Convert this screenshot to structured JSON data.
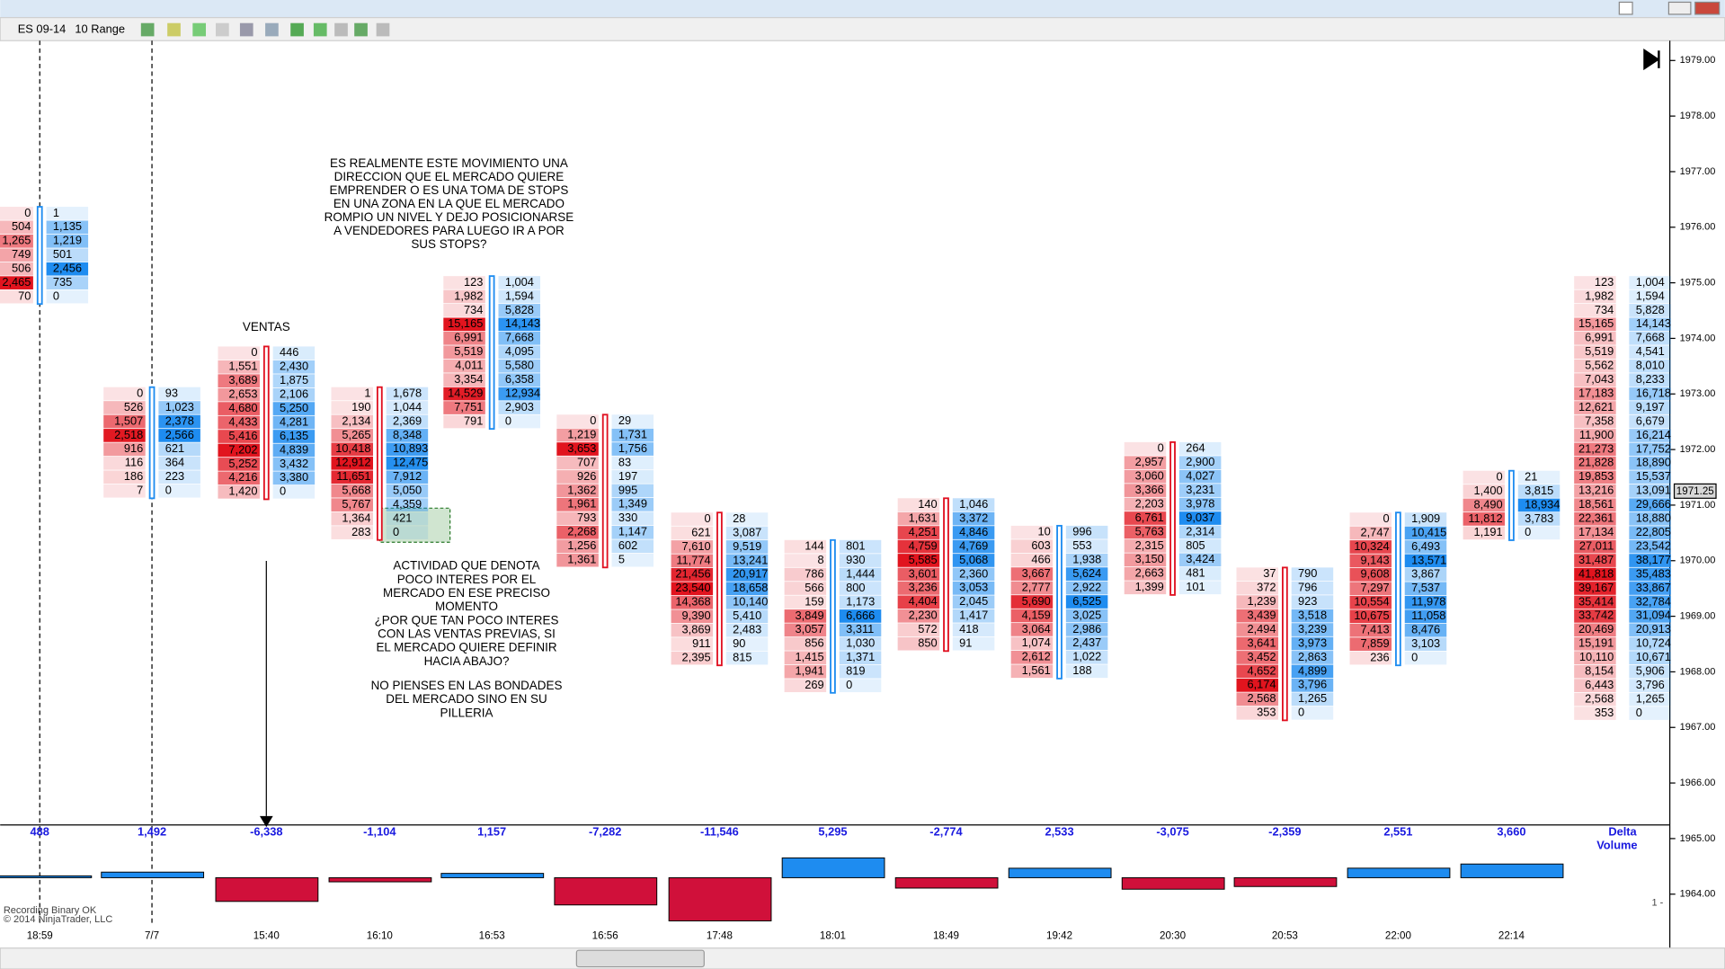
{
  "toolbar": {
    "instrument": "ES 09-14",
    "period": "10 Range"
  },
  "price_axis": {
    "labels": [
      "1979.00",
      "1978.00",
      "1977.00",
      "1976.00",
      "1975.00",
      "1974.00",
      "1973.00",
      "1972.00",
      "1971.00",
      "1970.00",
      "1969.00",
      "1968.00",
      "1967.00",
      "1966.00",
      "1965.00",
      "1964.00"
    ],
    "current_price": "1971.25"
  },
  "clusters": [
    {
      "time": "18:59",
      "rows": [
        [
          "0",
          "1"
        ],
        [
          "504",
          "1,135"
        ],
        [
          "1,265",
          "1,219"
        ],
        [
          "749",
          "501"
        ],
        [
          "506",
          "2,456"
        ],
        [
          "2,465",
          "735"
        ],
        [
          "70",
          "0"
        ]
      ]
    },
    {
      "time": "7/7",
      "rows": [
        [
          "0",
          "93"
        ],
        [
          "526",
          "1,023"
        ],
        [
          "1,507",
          "2,378"
        ],
        [
          "2,518",
          "2,566"
        ],
        [
          "916",
          "621"
        ],
        [
          "116",
          "364"
        ],
        [
          "186",
          "223"
        ],
        [
          "7",
          "0"
        ]
      ]
    },
    {
      "time": "15:40",
      "rows": [
        [
          "0",
          "446"
        ],
        [
          "1,551",
          "2,430"
        ],
        [
          "3,689",
          "1,875"
        ],
        [
          "2,653",
          "2,106"
        ],
        [
          "4,680",
          "5,250"
        ],
        [
          "4,433",
          "4,281"
        ],
        [
          "5,416",
          "6,135"
        ],
        [
          "7,202",
          "4,839"
        ],
        [
          "5,252",
          "3,432"
        ],
        [
          "4,216",
          "3,380"
        ],
        [
          "1,420",
          "0"
        ]
      ]
    },
    {
      "time": "16:10",
      "rows": [
        [
          "1",
          "1,678"
        ],
        [
          "190",
          "1,044"
        ],
        [
          "2,134",
          "2,369"
        ],
        [
          "5,265",
          "8,348"
        ],
        [
          "10,418",
          "10,893"
        ],
        [
          "12,912",
          "12,475"
        ],
        [
          "11,651",
          "7,912"
        ],
        [
          "5,668",
          "5,050"
        ],
        [
          "5,767",
          "4,359"
        ],
        [
          "1,364",
          "421"
        ],
        [
          "283",
          "0"
        ]
      ]
    },
    {
      "time": "16:53",
      "rows": [
        [
          "123",
          "1,004"
        ],
        [
          "1,982",
          "1,594"
        ],
        [
          "734",
          "5,828"
        ],
        [
          "15,165",
          "14,143"
        ],
        [
          "6,991",
          "7,668"
        ],
        [
          "5,519",
          "4,095"
        ],
        [
          "4,011",
          "5,580"
        ],
        [
          "3,354",
          "6,358"
        ],
        [
          "14,529",
          "12,934"
        ],
        [
          "7,751",
          "2,903"
        ],
        [
          "791",
          "0"
        ]
      ]
    },
    {
      "time": "16:56",
      "rows": [
        [
          "0",
          "29"
        ],
        [
          "1,219",
          "1,731"
        ],
        [
          "3,653",
          "1,756"
        ],
        [
          "707",
          "83"
        ],
        [
          "926",
          "197"
        ],
        [
          "1,362",
          "995"
        ],
        [
          "1,961",
          "1,349"
        ],
        [
          "793",
          "330"
        ],
        [
          "2,268",
          "1,147"
        ],
        [
          "1,256",
          "602"
        ],
        [
          "1,361",
          "5"
        ]
      ]
    },
    {
      "time": "17:48",
      "rows": [
        [
          "0",
          "28"
        ],
        [
          "621",
          "3,087"
        ],
        [
          "7,610",
          "9,519"
        ],
        [
          "11,774",
          "13,241"
        ],
        [
          "21,456",
          "20,917"
        ],
        [
          "23,540",
          "18,658"
        ],
        [
          "14,368",
          "10,140"
        ],
        [
          "9,390",
          "5,410"
        ],
        [
          "3,869",
          "2,483"
        ],
        [
          "911",
          "90"
        ],
        [
          "2,395",
          "815"
        ]
      ]
    },
    {
      "time": "18:01",
      "rows": [
        [
          "144",
          "801"
        ],
        [
          "8",
          "930"
        ],
        [
          "786",
          "1,444"
        ],
        [
          "566",
          "800"
        ],
        [
          "159",
          "1,173"
        ],
        [
          "3,849",
          "6,666"
        ],
        [
          "3,057",
          "3,311"
        ],
        [
          "856",
          "1,030"
        ],
        [
          "1,415",
          "1,371"
        ],
        [
          "1,941",
          "819"
        ],
        [
          "269",
          "0"
        ]
      ]
    },
    {
      "time": "18:49",
      "rows": [
        [
          "140",
          "1,046"
        ],
        [
          "1,631",
          "3,372"
        ],
        [
          "4,251",
          "4,846"
        ],
        [
          "4,759",
          "4,769"
        ],
        [
          "5,585",
          "5,068"
        ],
        [
          "3,601",
          "2,360"
        ],
        [
          "3,236",
          "3,053"
        ],
        [
          "4,404",
          "2,045"
        ],
        [
          "2,230",
          "1,417"
        ],
        [
          "572",
          "418"
        ],
        [
          "850",
          "91"
        ]
      ]
    },
    {
      "time": "19:42",
      "rows": [
        [
          "10",
          "996"
        ],
        [
          "603",
          "553"
        ],
        [
          "466",
          "1,938"
        ],
        [
          "3,667",
          "5,624"
        ],
        [
          "2,777",
          "2,922"
        ],
        [
          "5,690",
          "6,525"
        ],
        [
          "4,159",
          "3,025"
        ],
        [
          "3,064",
          "2,986"
        ],
        [
          "1,074",
          "2,437"
        ],
        [
          "2,612",
          "1,022"
        ],
        [
          "1,561",
          "188"
        ]
      ]
    },
    {
      "time": "20:30",
      "rows": [
        [
          "0",
          "264"
        ],
        [
          "2,957",
          "2,900"
        ],
        [
          "3,060",
          "4,027"
        ],
        [
          "3,366",
          "3,231"
        ],
        [
          "2,203",
          "3,978"
        ],
        [
          "6,761",
          "9,037"
        ],
        [
          "5,763",
          "2,314"
        ],
        [
          "2,315",
          "805"
        ],
        [
          "3,150",
          "3,424"
        ],
        [
          "2,663",
          "481"
        ],
        [
          "1,399",
          "101"
        ]
      ]
    },
    {
      "time": "20:53",
      "rows": [
        [
          "37",
          "790"
        ],
        [
          "372",
          "796"
        ],
        [
          "1,239",
          "923"
        ],
        [
          "3,439",
          "3,518"
        ],
        [
          "2,494",
          "3,239"
        ],
        [
          "3,641",
          "3,973"
        ],
        [
          "3,452",
          "2,863"
        ],
        [
          "4,652",
          "4,899"
        ],
        [
          "6,174",
          "3,796"
        ],
        [
          "2,568",
          "1,265"
        ],
        [
          "353",
          "0"
        ]
      ]
    },
    {
      "time": "22:00",
      "rows": [
        [
          "0",
          "1,909"
        ],
        [
          "2,747",
          "10,415"
        ],
        [
          "10,324",
          "6,493"
        ],
        [
          "9,143",
          "13,571"
        ],
        [
          "9,608",
          "3,867"
        ],
        [
          "7,297",
          "7,537"
        ],
        [
          "10,554",
          "11,978"
        ],
        [
          "10,675",
          "11,058"
        ],
        [
          "7,413",
          "8,476"
        ],
        [
          "7,859",
          "3,103"
        ],
        [
          "236",
          "0"
        ]
      ]
    },
    {
      "time": "22:14",
      "rows": [
        [
          "0",
          "21"
        ],
        [
          "1,400",
          "3,815"
        ],
        [
          "8,490",
          "18,934"
        ],
        [
          "11,812",
          "3,783"
        ],
        [
          "1,191",
          "0"
        ]
      ]
    }
  ],
  "profile": {
    "rows": [
      [
        "123",
        "1,004"
      ],
      [
        "1,982",
        "1,594"
      ],
      [
        "734",
        "5,828"
      ],
      [
        "15,165",
        "14,143"
      ],
      [
        "6,991",
        "7,668"
      ],
      [
        "5,519",
        "4,541"
      ],
      [
        "5,562",
        "8,010"
      ],
      [
        "7,043",
        "8,233"
      ],
      [
        "17,183",
        "16,718"
      ],
      [
        "12,621",
        "9,197"
      ],
      [
        "7,358",
        "6,679"
      ],
      [
        "11,900",
        "16,214"
      ],
      [
        "21,273",
        "17,752"
      ],
      [
        "21,828",
        "18,890"
      ],
      [
        "19,853",
        "15,537"
      ],
      [
        "13,216",
        "13,091"
      ],
      [
        "18,561",
        "29,666"
      ],
      [
        "22,361",
        "18,880"
      ],
      [
        "17,134",
        "22,805"
      ],
      [
        "27,011",
        "23,542"
      ],
      [
        "31,487",
        "38,177"
      ],
      [
        "41,818",
        "35,483"
      ],
      [
        "39,167",
        "33,867"
      ],
      [
        "35,414",
        "32,784"
      ],
      [
        "33,742",
        "31,094"
      ],
      [
        "20,469",
        "20,913"
      ],
      [
        "15,191",
        "10,724"
      ],
      [
        "10,110",
        "10,671"
      ],
      [
        "8,154",
        "5,906"
      ],
      [
        "6,443",
        "3,796"
      ],
      [
        "2,568",
        "1,265"
      ],
      [
        "353",
        "0"
      ]
    ]
  },
  "delta": {
    "title_line1": "Delta",
    "title_line2": "Volume",
    "scale_label": "1 -",
    "values": [
      488,
      1492,
      -6338,
      -1104,
      1157,
      -7282,
      -11546,
      5295,
      -2774,
      2533,
      -3075,
      -2359,
      2551,
      3660
    ],
    "value_labels": [
      "488",
      "1,492",
      "-6,338",
      "-1,104",
      "1,157",
      "-7,282",
      "-11,546",
      "5,295",
      "-2,774",
      "2,533",
      "-3,075",
      "-2,359",
      "2,551",
      "3,660"
    ]
  },
  "annotations": {
    "question": [
      "ES REALMENTE ESTE MOVIMIENTO UNA",
      "DIRECCION QUE EL MERCADO QUIERE",
      "EMPRENDER O ES UNA TOMA DE STOPS",
      "EN UNA ZONA EN LA QUE EL MERCADO",
      "ROMPIO UN NIVEL Y DEJO POSICIONARSE",
      "A VENDEDORES PARA LUEGO IR A POR",
      "SUS STOPS?"
    ],
    "ventas": "VENTAS",
    "comment": [
      "ACTIVIDAD QUE DENOTA",
      "POCO INTERES POR EL",
      "MERCADO EN ESE PRECISO",
      "MOMENTO",
      "¿POR QUE TAN POCO INTERES",
      "CON LAS VENTAS PREVIAS, SI",
      "EL MERCADO QUIERE DEFINIR",
      "HACIA ABAJO?"
    ],
    "advice": [
      "NO PIENSES EN LAS BONDADES",
      "DEL MERCADO SINO EN SU",
      "PILLERIA"
    ]
  },
  "status": {
    "recording": "Recording Binary OK",
    "copyright": "© 2014 NinjaTrader, LLC"
  }
}
